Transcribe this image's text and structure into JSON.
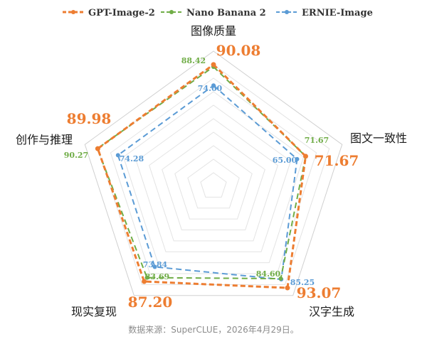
{
  "chart_data": {
    "type": "radar",
    "title": "",
    "categories": [
      "图像质量",
      "图文一致性",
      "汉字生成",
      "现实复现",
      "创作与推理"
    ],
    "range": [
      0,
      100
    ],
    "grid": true,
    "legend_position": "top",
    "series": [
      {
        "name": "GPT-Image-2",
        "color": "#ED7D31",
        "values": [
          90.08,
          71.67,
          93.07,
          87.2,
          89.98
        ]
      },
      {
        "name": "Nano Banana 2",
        "color": "#70AD47",
        "values": [
          88.42,
          71.67,
          84.6,
          83.69,
          90.27
        ]
      },
      {
        "name": "ERNIE-Image",
        "color": "#5B9BD5",
        "values": [
          74.6,
          65.0,
          85.25,
          73.84,
          74.28
        ]
      }
    ],
    "value_labels": [
      [
        "90.08",
        "71.67",
        "93.07",
        "87.20",
        "89.98"
      ],
      [
        "88.42",
        "71.67",
        "84.60",
        "83.69",
        "90.27"
      ],
      [
        "74.60",
        "65.00",
        "85.25",
        "73.84",
        "74.28"
      ]
    ]
  },
  "source_text": "数据来源：SuperCLUE，2026年4月29日。"
}
